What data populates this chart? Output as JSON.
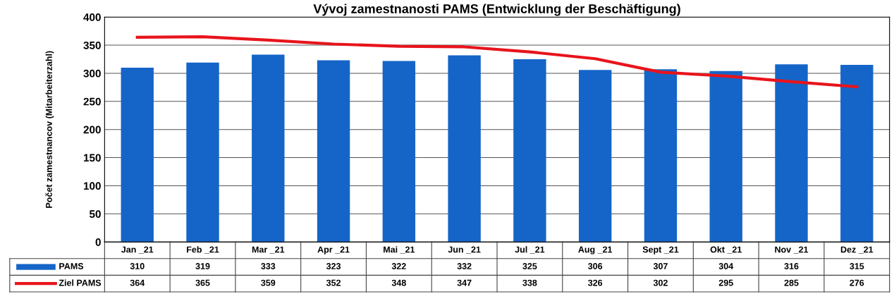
{
  "chart_data": {
    "type": "bar",
    "title": "Vývoj zamestnanosti PAMS (Entwicklung der Beschäftigung)",
    "ylabel": "Počet zamestnancov (Mitarbeiterzahl)",
    "categories": [
      "Jan _21",
      "Feb _21",
      "Mar _21",
      "Apr _21",
      "Mai _21",
      "Jun _21",
      "Jul _21",
      "Aug _21",
      "Sept _21",
      "Okt _21",
      "Nov _21",
      "Dez _21"
    ],
    "series": [
      {
        "name": "PAMS",
        "color": "#1565c8",
        "values": [
          310,
          319,
          333,
          323,
          322,
          332,
          325,
          306,
          307,
          304,
          316,
          315
        ]
      },
      {
        "name": "Ziel PAMS",
        "type": "line",
        "color": "#e8141c",
        "values": [
          364,
          365,
          359,
          352,
          348,
          347,
          338,
          326,
          302,
          295,
          285,
          276
        ]
      }
    ],
    "ylim": [
      0,
      400
    ],
    "yticks": [
      0,
      50,
      100,
      150,
      200,
      250,
      300,
      350,
      400
    ],
    "grid": "y",
    "data_labels": true,
    "legend": "bottom left"
  }
}
